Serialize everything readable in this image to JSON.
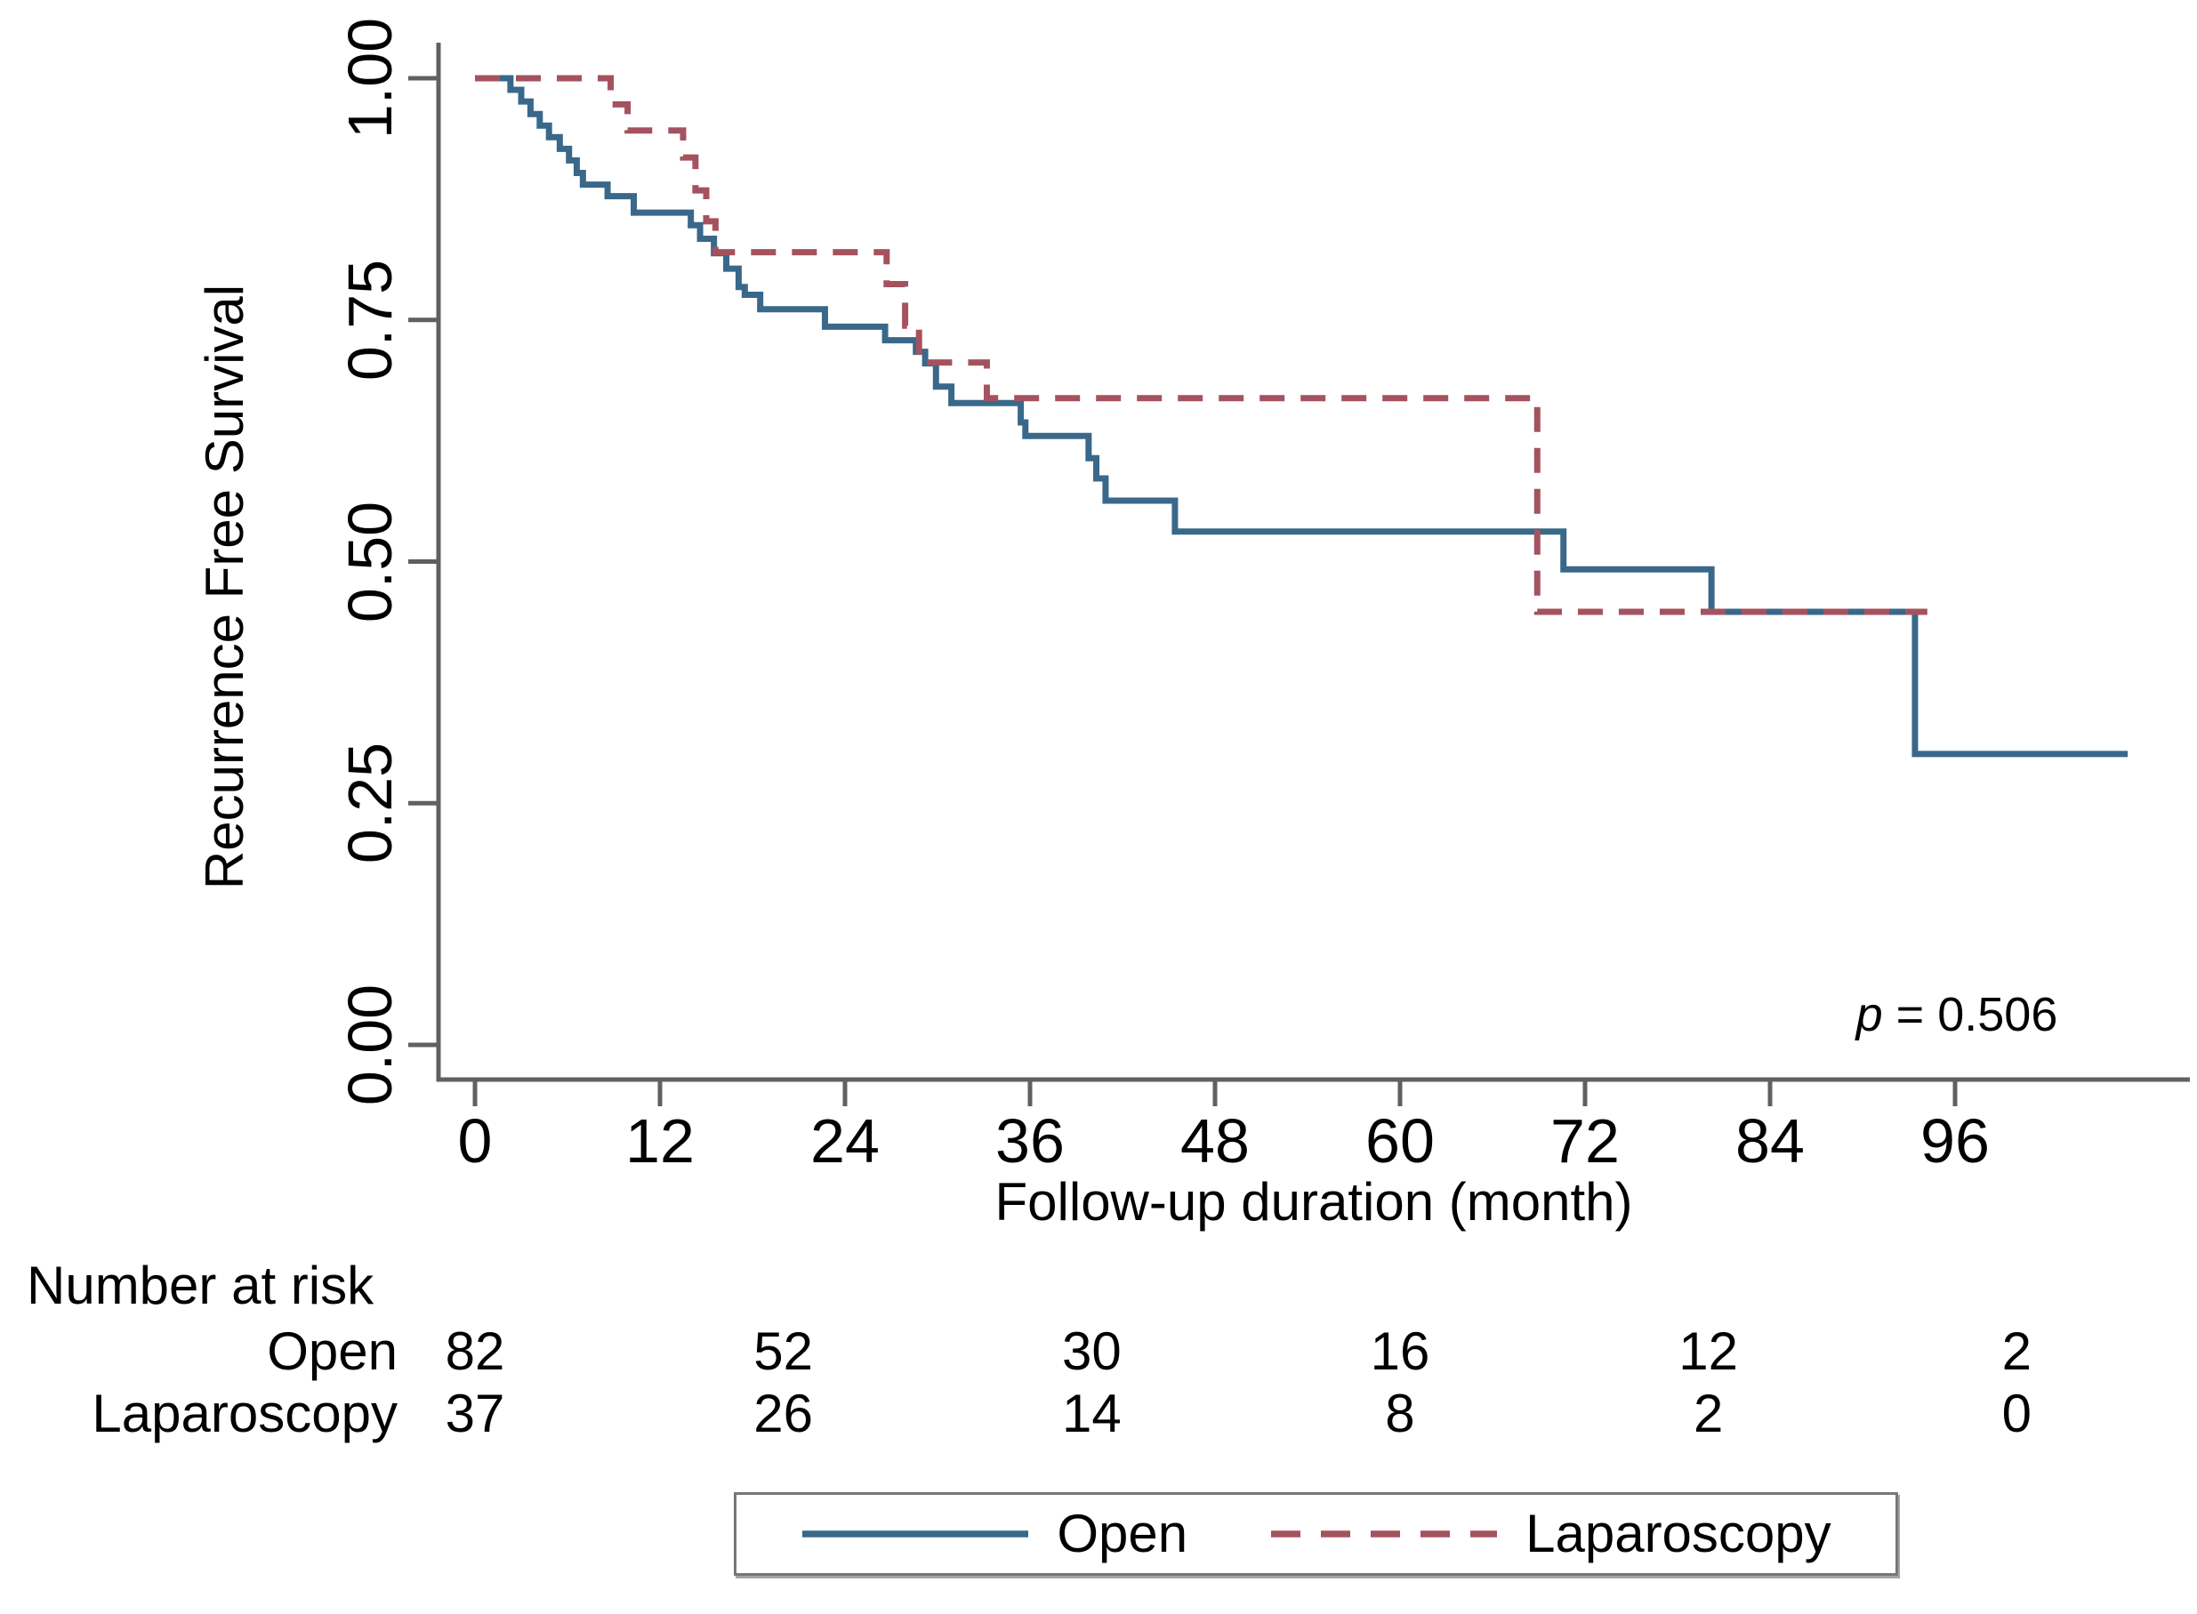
{
  "colors": {
    "open": "#39688a",
    "laparoscopy": "#a5525f",
    "axis": "#606060",
    "text": "#000000",
    "legend_border": "#777777"
  },
  "chart_data": {
    "type": "line",
    "subtype": "kaplan_meier_step",
    "title": "",
    "xlabel": "Follow-up duration (month)",
    "ylabel": "Recurrence Free Survival",
    "xlim": [
      0,
      111.5
    ],
    "ylim": [
      0,
      1
    ],
    "grid": false,
    "legend_position": "bottom-center",
    "x_ticks": [
      0,
      12,
      24,
      36,
      48,
      60,
      72,
      84,
      96
    ],
    "x_tick_labels": [
      "0",
      "12",
      "24",
      "36",
      "48",
      "60",
      "72",
      "84",
      "96"
    ],
    "y_ticks": [
      0,
      0.25,
      0.5,
      0.75,
      1
    ],
    "y_tick_labels": [
      "0.00",
      "0.25",
      "0.50",
      "0.75",
      "1.00"
    ],
    "annotation": {
      "text": "p = 0.506",
      "italic_prefix": "p",
      "rest": " = 0.506"
    },
    "series": [
      {
        "name": "Open",
        "line_style": "solid",
        "color": "#39688a",
        "end_x": 107.2,
        "steps": [
          [
            0,
            1.0
          ],
          [
            2.3,
            0.988
          ],
          [
            3.0,
            0.976
          ],
          [
            3.6,
            0.963
          ],
          [
            4.2,
            0.951
          ],
          [
            4.8,
            0.939
          ],
          [
            5.5,
            0.927
          ],
          [
            6.1,
            0.915
          ],
          [
            6.6,
            0.902
          ],
          [
            7.0,
            0.89
          ],
          [
            8.6,
            0.878
          ],
          [
            10.3,
            0.861
          ],
          [
            14.0,
            0.848
          ],
          [
            14.6,
            0.834
          ],
          [
            15.5,
            0.819
          ],
          [
            16.3,
            0.803
          ],
          [
            17.1,
            0.784
          ],
          [
            17.5,
            0.776
          ],
          [
            18.5,
            0.761
          ],
          [
            22.7,
            0.743
          ],
          [
            26.6,
            0.729
          ],
          [
            28.6,
            0.717
          ],
          [
            29.2,
            0.705
          ],
          [
            29.9,
            0.681
          ],
          [
            30.9,
            0.664
          ],
          [
            35.4,
            0.644
          ],
          [
            35.7,
            0.63
          ],
          [
            39.8,
            0.607
          ],
          [
            40.3,
            0.586
          ],
          [
            40.9,
            0.563
          ],
          [
            45.4,
            0.531
          ],
          [
            70.6,
            0.492
          ],
          [
            80.2,
            0.448
          ],
          [
            93.4,
            0.301
          ]
        ]
      },
      {
        "name": "Laparoscopy",
        "line_style": "dashed",
        "color": "#a5525f",
        "end_x": 94.2,
        "steps": [
          [
            0,
            1.0
          ],
          [
            8.8,
            0.973
          ],
          [
            9.9,
            0.946
          ],
          [
            13.5,
            0.918
          ],
          [
            14.3,
            0.884
          ],
          [
            15.0,
            0.852
          ],
          [
            15.6,
            0.82
          ],
          [
            26.7,
            0.787
          ],
          [
            27.9,
            0.744
          ],
          [
            28.8,
            0.706
          ],
          [
            33.2,
            0.669
          ],
          [
            68.9,
            0.448
          ]
        ]
      }
    ]
  },
  "risk_table": {
    "title": "Number at risk",
    "time_points": [
      0,
      20,
      40,
      60,
      80,
      100
    ],
    "rows": [
      {
        "label": "Open",
        "counts": [
          "82",
          "52",
          "30",
          "16",
          "12",
          "2"
        ]
      },
      {
        "label": "Laparoscopy",
        "counts": [
          "37",
          "26",
          "14",
          "8",
          "2",
          "0"
        ]
      }
    ]
  },
  "legend": {
    "items": [
      {
        "label": "Open",
        "style": "solid"
      },
      {
        "label": "Laparoscopy",
        "style": "dashed"
      }
    ]
  }
}
